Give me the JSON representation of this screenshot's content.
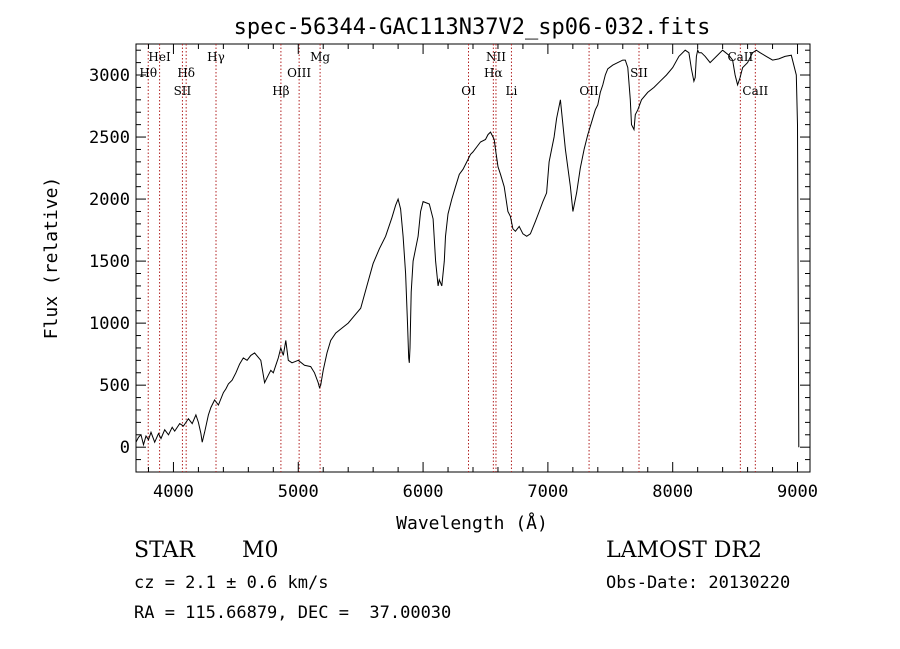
{
  "chart_data": {
    "type": "line",
    "title": "spec-56344-GAC113N37V2_sp06-032.fits",
    "xlabel": "Wavelength (Å)",
    "ylabel": "Flux (relative)",
    "xlim": [
      3700,
      9100
    ],
    "ylim": [
      -200,
      3250
    ],
    "xticks": [
      4000,
      5000,
      6000,
      7000,
      8000,
      9000
    ],
    "yticks": [
      0,
      500,
      1000,
      1500,
      2000,
      2500,
      3000
    ],
    "line_color": "#000000",
    "marker_color": "#b22222",
    "series": [
      {
        "x": [
          3700,
          3720,
          3740,
          3760,
          3780,
          3800,
          3820,
          3850,
          3880,
          3900,
          3930,
          3960,
          3990,
          4010,
          4050,
          4080,
          4120,
          4150,
          4180,
          4200,
          4220,
          4230,
          4250,
          4280,
          4300,
          4330,
          4360,
          4400,
          4420,
          4440,
          4470,
          4500,
          4530,
          4560,
          4590,
          4620,
          4650,
          4700,
          4730,
          4760,
          4780,
          4800,
          4820,
          4840,
          4860,
          4880,
          4900,
          4920,
          4950,
          5000,
          5050,
          5100,
          5130,
          5160,
          5170,
          5180,
          5200,
          5230,
          5260,
          5300,
          5350,
          5400,
          5450,
          5500,
          5550,
          5600,
          5650,
          5700,
          5750,
          5780,
          5800,
          5820,
          5840,
          5860,
          5875,
          5885,
          5890,
          5895,
          5905,
          5920,
          5940,
          5960,
          5980,
          6000,
          6050,
          6080,
          6100,
          6120,
          6130,
          6150,
          6170,
          6180,
          6200,
          6230,
          6260,
          6290,
          6320,
          6350,
          6380,
          6400,
          6430,
          6460,
          6500,
          6520,
          6540,
          6560,
          6570,
          6580,
          6600,
          6620,
          6650,
          6680,
          6700,
          6720,
          6740,
          6770,
          6800,
          6830,
          6860,
          6900,
          6930,
          6960,
          6990,
          7010,
          7030,
          7050,
          7070,
          7100,
          7120,
          7140,
          7160,
          7180,
          7200,
          7230,
          7260,
          7290,
          7320,
          7350,
          7380,
          7400,
          7420,
          7440,
          7460,
          7480,
          7520,
          7560,
          7600,
          7620,
          7640,
          7660,
          7670,
          7690,
          7700,
          7720,
          7750,
          7800,
          7850,
          7900,
          7950,
          8000,
          8050,
          8100,
          8130,
          8150,
          8170,
          8180,
          8190,
          8200,
          8210,
          8230,
          8260,
          8300,
          8350,
          8400,
          8450,
          8480,
          8500,
          8520,
          8540,
          8560,
          8600,
          8640,
          8670,
          8700,
          8750,
          8800,
          8850,
          8900,
          8950,
          8990,
          9000,
          9010
        ],
        "y": [
          40,
          80,
          100,
          20,
          90,
          60,
          120,
          40,
          110,
          70,
          140,
          100,
          160,
          130,
          190,
          170,
          230,
          190,
          260,
          200,
          110,
          40,
          120,
          260,
          320,
          380,
          340,
          440,
          470,
          510,
          540,
          600,
          670,
          720,
          700,
          740,
          760,
          700,
          520,
          580,
          620,
          600,
          660,
          720,
          800,
          740,
          860,
          700,
          680,
          700,
          660,
          650,
          600,
          520,
          480,
          500,
          620,
          760,
          860,
          920,
          960,
          1000,
          1060,
          1120,
          1300,
          1480,
          1600,
          1700,
          1850,
          1950,
          2000,
          1920,
          1700,
          1400,
          1000,
          720,
          680,
          800,
          1250,
          1500,
          1600,
          1700,
          1900,
          1980,
          1960,
          1840,
          1500,
          1300,
          1350,
          1300,
          1500,
          1700,
          1880,
          2000,
          2100,
          2200,
          2240,
          2300,
          2360,
          2380,
          2420,
          2460,
          2480,
          2520,
          2540,
          2500,
          2480,
          2400,
          2260,
          2200,
          2100,
          1900,
          1860,
          1760,
          1740,
          1780,
          1720,
          1700,
          1720,
          1820,
          1900,
          1980,
          2050,
          2300,
          2400,
          2500,
          2650,
          2800,
          2600,
          2400,
          2250,
          2100,
          1900,
          2050,
          2250,
          2400,
          2520,
          2620,
          2720,
          2760,
          2860,
          2920,
          3000,
          3050,
          3080,
          3100,
          3120,
          3120,
          3060,
          2800,
          2600,
          2560,
          2680,
          2720,
          2800,
          2860,
          2900,
          2950,
          3000,
          3060,
          3150,
          3200,
          3180,
          3050,
          2950,
          2980,
          3150,
          3200,
          3180,
          3180,
          3150,
          3100,
          3150,
          3200,
          3160,
          3120,
          3000,
          2920,
          2980,
          3060,
          3100,
          3180,
          3200,
          3180,
          3150,
          3120,
          3130,
          3150,
          3160,
          3000,
          2600,
          0
        ]
      }
    ],
    "lines": [
      {
        "label": "Hθ",
        "wavelength": 3798,
        "row": 2
      },
      {
        "label": "HeI",
        "wavelength": 3889,
        "row": 1
      },
      {
        "label": "Hδ",
        "wavelength": 4102,
        "row": 2
      },
      {
        "label": "SII",
        "wavelength": 4072,
        "row": 3
      },
      {
        "label": "Hγ",
        "wavelength": 4341,
        "row": 1
      },
      {
        "label": "Hβ",
        "wavelength": 4861,
        "row": 3
      },
      {
        "label": "OIII",
        "wavelength": 5007,
        "row": 2
      },
      {
        "label": "Mg",
        "wavelength": 5175,
        "row": 1
      },
      {
        "label": "OI",
        "wavelength": 6364,
        "row": 3
      },
      {
        "label": "NII",
        "wavelength": 6584,
        "row": 1
      },
      {
        "label": "Hα",
        "wavelength": 6563,
        "row": 2
      },
      {
        "label": "Li",
        "wavelength": 6708,
        "row": 3
      },
      {
        "label": "OII",
        "wavelength": 7330,
        "row": 3
      },
      {
        "label": "SII",
        "wavelength": 7730,
        "row": 2
      },
      {
        "label": "CaII",
        "wavelength": 8542,
        "row": 1
      },
      {
        "label": "CaII",
        "wavelength": 8662,
        "row": 3
      }
    ]
  },
  "footer": {
    "object_class": "STAR",
    "subclass": "M0",
    "redshift": "cz = 2.1 ± 0.6 km/s",
    "coords": "RA = 115.66879, DEC =  37.00030",
    "survey": "LAMOST DR2",
    "obs_date": "Obs-Date: 20130220"
  }
}
